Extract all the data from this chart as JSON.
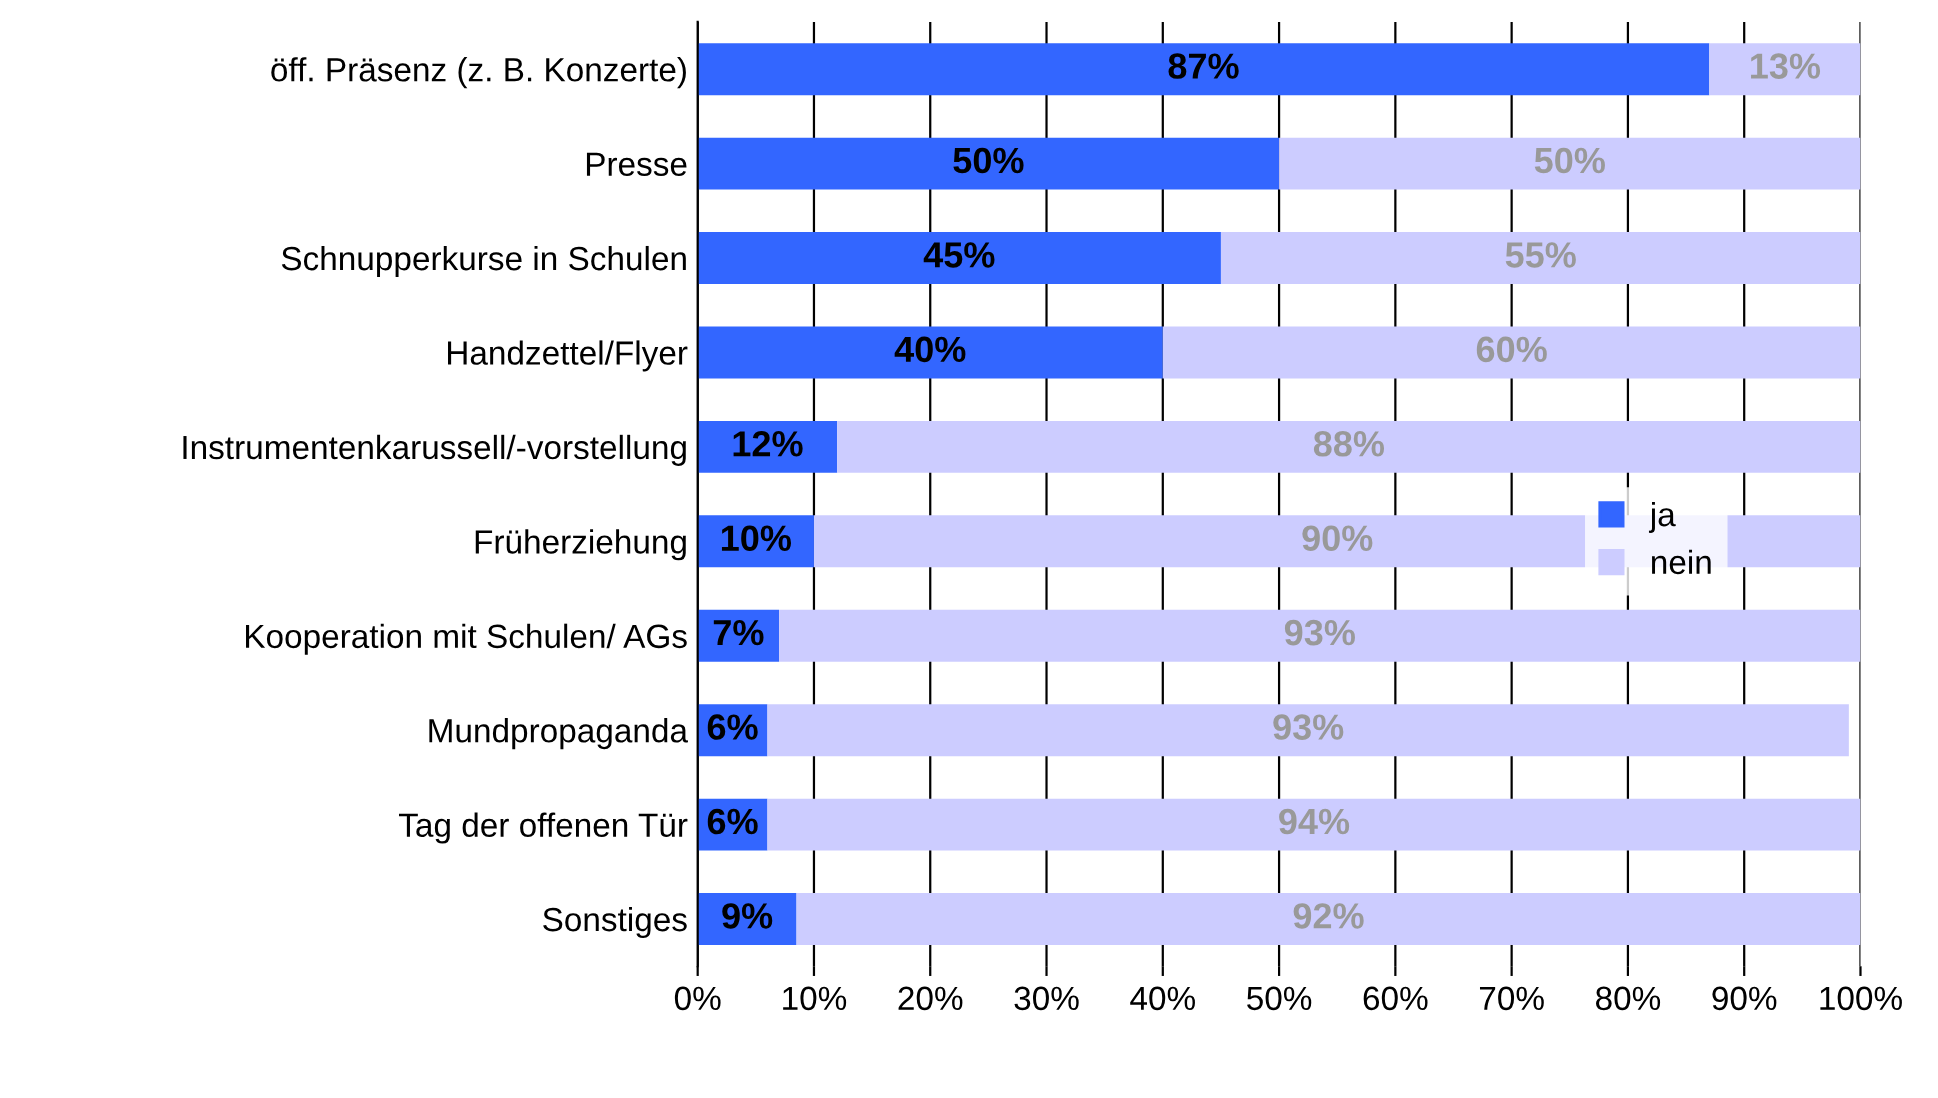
{
  "chart_data": {
    "type": "bar",
    "orientation": "horizontal",
    "stacked": true,
    "categories": [
      "öff. Präsenz (z. B. Konzerte)",
      "Presse",
      "Schnupperkurse in Schulen",
      "Handzettel/Flyer",
      "Instrumentenkarussell/-vorstellung",
      "Früherziehung",
      "Kooperation mit Schulen/ AGs",
      "Mundpropaganda",
      "Tag der offenen Tür",
      "Sonstiges"
    ],
    "series": [
      {
        "name": "ja",
        "color": "#3366ff",
        "values": [
          87,
          50,
          45,
          40,
          12,
          10,
          7,
          6,
          6,
          8.5
        ],
        "value_labels": [
          "87%",
          "50%",
          "45%",
          "40%",
          "12%",
          "10%",
          "7%",
          "6%",
          "6%",
          "9%"
        ]
      },
      {
        "name": "nein",
        "color": "#ccccff",
        "values": [
          13,
          50,
          55,
          60,
          88,
          90,
          93,
          93,
          94,
          91.5
        ],
        "value_labels": [
          "13%",
          "50%",
          "55%",
          "60%",
          "88%",
          "90%",
          "93%",
          "93%",
          "94%",
          "92%"
        ]
      }
    ],
    "xlim": [
      0,
      100
    ],
    "xticks": [
      {
        "value": 0,
        "label": "0%"
      },
      {
        "value": 10,
        "label": "10%"
      },
      {
        "value": 20,
        "label": "20%"
      },
      {
        "value": 30,
        "label": "30%"
      },
      {
        "value": 40,
        "label": "40%"
      },
      {
        "value": 50,
        "label": "50%"
      },
      {
        "value": 60,
        "label": "60%"
      },
      {
        "value": 70,
        "label": "70%"
      },
      {
        "value": 80,
        "label": "80%"
      },
      {
        "value": 90,
        "label": "90%"
      },
      {
        "value": 100,
        "label": "100%"
      }
    ],
    "grid": "x",
    "legend": "right"
  }
}
